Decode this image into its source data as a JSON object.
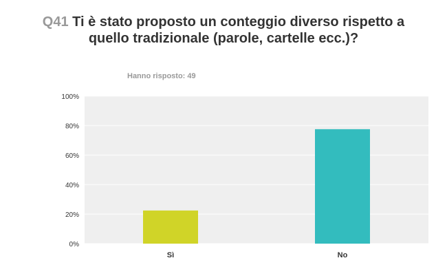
{
  "title": {
    "question_number": "Q41",
    "text": "Ti è stato proposto un conteggio diverso rispetto a quello tradizionale (parole, cartelle ecc.)?"
  },
  "subtitle": "Hanno risposto: 49",
  "colors": {
    "plot_background": "#efefef",
    "gridline": "#ffffff",
    "bar_si": "#d0d428",
    "bar_no": "#33bcbe"
  },
  "chart_data": {
    "type": "bar",
    "categories": [
      "Sì",
      "No"
    ],
    "values": [
      22.45,
      77.55
    ],
    "unit": "%",
    "ylim": [
      0,
      100
    ],
    "yticks": [
      "0%",
      "20%",
      "40%",
      "60%",
      "80%",
      "100%"
    ],
    "grid": true,
    "title": "Q41 Ti è stato proposto un conteggio diverso rispetto a quello tradizionale (parole, cartelle ecc.)?",
    "subtitle": "Hanno risposto: 49",
    "xlabel": "",
    "ylabel": ""
  }
}
